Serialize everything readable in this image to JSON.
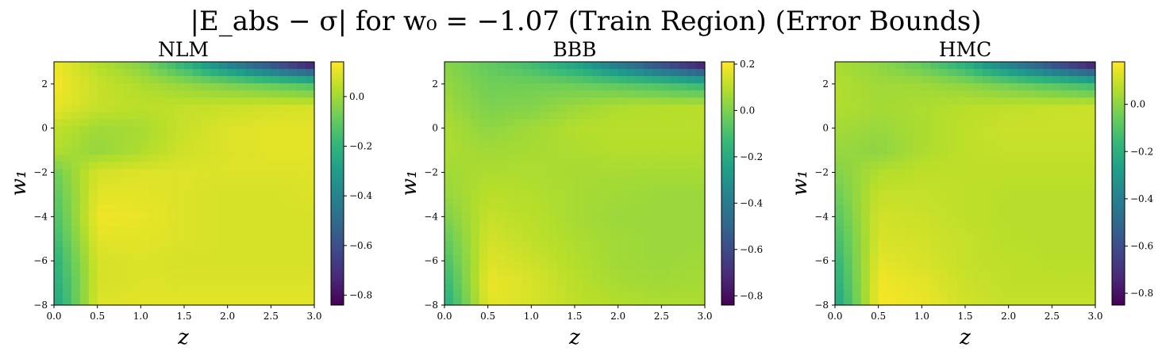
{
  "figure": {
    "title": "|E_abs − σ| for w₀ = −1.07 (Train Region) (Error Bounds)"
  },
  "colormap": [
    "#440154",
    "#482878",
    "#3e4989",
    "#31688e",
    "#26828e",
    "#1f9e89",
    "#35b779",
    "#6ece58",
    "#b5de2b",
    "#fde725"
  ],
  "chart_data": [
    {
      "type": "heatmap",
      "title": "NLM",
      "xlabel": "z",
      "ylabel": "w₁",
      "xlim": [
        0.0,
        3.0
      ],
      "ylim": [
        -8,
        3
      ],
      "xticks": [
        "0.0",
        "0.5",
        "1.0",
        "1.5",
        "2.0",
        "2.5",
        "3.0"
      ],
      "yticks": [
        "2",
        "0",
        "−2",
        "−4",
        "−6",
        "−8"
      ],
      "colorbar": {
        "range": [
          -0.84,
          0.14
        ],
        "ticks": [
          "0.0",
          "−0.2",
          "−0.4",
          "−0.6",
          "−0.8"
        ],
        "tick_values": [
          0.0,
          -0.2,
          -0.4,
          -0.6,
          -0.8
        ]
      },
      "grid": {
        "z": [
          0.0,
          0.5,
          1.0,
          1.5,
          2.0,
          2.5,
          3.0
        ],
        "w1": [
          3,
          2,
          1,
          0,
          -1,
          -2,
          -3,
          -4,
          -5,
          -6,
          -7,
          -8
        ],
        "values": [
          [
            0.12,
            0.03,
            -0.05,
            -0.22,
            -0.45,
            -0.65,
            -0.84
          ],
          [
            0.13,
            0.06,
            0.02,
            -0.02,
            -0.06,
            -0.1,
            -0.15
          ],
          [
            0.11,
            0.06,
            0.04,
            0.05,
            0.06,
            0.07,
            0.08
          ],
          [
            0.05,
            0.0,
            0.01,
            0.06,
            0.09,
            0.1,
            0.1
          ],
          [
            0.03,
            -0.02,
            0.02,
            0.07,
            0.09,
            0.1,
            0.1
          ],
          [
            -0.08,
            0.08,
            0.09,
            0.09,
            0.09,
            0.09,
            0.09
          ],
          [
            -0.12,
            0.1,
            0.1,
            0.09,
            0.08,
            0.08,
            0.09
          ],
          [
            -0.15,
            0.12,
            0.11,
            0.09,
            0.08,
            0.08,
            0.08
          ],
          [
            -0.18,
            0.1,
            0.1,
            0.09,
            0.08,
            0.08,
            0.08
          ],
          [
            -0.22,
            0.08,
            0.09,
            0.08,
            0.08,
            0.08,
            0.08
          ],
          [
            -0.25,
            0.08,
            0.09,
            0.09,
            0.09,
            0.09,
            0.09
          ],
          [
            -0.28,
            0.09,
            0.1,
            0.1,
            0.1,
            0.1,
            0.1
          ]
        ]
      }
    },
    {
      "type": "heatmap",
      "title": "BBB",
      "xlabel": "z",
      "ylabel": "w₁",
      "xlim": [
        0.0,
        3.0
      ],
      "ylim": [
        -8,
        3
      ],
      "xticks": [
        "0.0",
        "0.5",
        "1.0",
        "1.5",
        "2.0",
        "2.5",
        "3.0"
      ],
      "yticks": [
        "2",
        "0",
        "−2",
        "−4",
        "−6",
        "−8"
      ],
      "colorbar": {
        "range": [
          -0.84,
          0.21
        ],
        "ticks": [
          "0.2",
          "0.0",
          "−0.2",
          "−0.4",
          "−0.6",
          "−0.8"
        ],
        "tick_values": [
          0.2,
          0.0,
          -0.2,
          -0.4,
          -0.6,
          -0.8
        ]
      },
      "grid": {
        "z": [
          0.0,
          0.5,
          1.0,
          1.5,
          2.0,
          2.5,
          3.0
        ],
        "w1": [
          3,
          2,
          1,
          0,
          -1,
          -2,
          -3,
          -4,
          -5,
          -6,
          -7,
          -8
        ],
        "values": [
          [
            0.02,
            -0.05,
            -0.12,
            -0.25,
            -0.45,
            -0.65,
            -0.84
          ],
          [
            0.04,
            -0.02,
            -0.02,
            -0.03,
            -0.06,
            -0.1,
            -0.15
          ],
          [
            0.06,
            0.0,
            0.01,
            0.05,
            0.08,
            0.09,
            0.1
          ],
          [
            0.08,
            0.03,
            0.06,
            0.09,
            0.1,
            0.1,
            0.1
          ],
          [
            0.08,
            0.06,
            0.07,
            0.08,
            0.09,
            0.09,
            0.09
          ],
          [
            0.06,
            0.08,
            0.08,
            0.07,
            0.07,
            0.07,
            0.07
          ],
          [
            0.04,
            0.1,
            0.09,
            0.07,
            0.06,
            0.05,
            0.05
          ],
          [
            0.0,
            0.12,
            0.1,
            0.07,
            0.05,
            0.05,
            0.05
          ],
          [
            -0.05,
            0.14,
            0.11,
            0.08,
            0.06,
            0.05,
            0.05
          ],
          [
            -0.1,
            0.16,
            0.13,
            0.09,
            0.06,
            0.05,
            0.06
          ],
          [
            -0.15,
            0.18,
            0.15,
            0.1,
            0.07,
            0.06,
            0.07
          ],
          [
            -0.2,
            0.17,
            0.15,
            0.11,
            0.09,
            0.08,
            0.08
          ]
        ]
      }
    },
    {
      "type": "heatmap",
      "title": "HMC",
      "xlabel": "z",
      "ylabel": "w₁",
      "xlim": [
        0.0,
        3.0
      ],
      "ylim": [
        -8,
        3
      ],
      "xticks": [
        "0.0",
        "0.5",
        "1.0",
        "1.5",
        "2.0",
        "2.5",
        "3.0"
      ],
      "yticks": [
        "2",
        "0",
        "−2",
        "−4",
        "−6",
        "−8"
      ],
      "colorbar": {
        "range": [
          -0.85,
          0.18
        ],
        "ticks": [
          "0.0",
          "−0.2",
          "−0.4",
          "−0.6",
          "−0.8"
        ],
        "tick_values": [
          0.0,
          -0.2,
          -0.4,
          -0.6,
          -0.8
        ]
      },
      "grid": {
        "z": [
          0.0,
          0.5,
          1.0,
          1.5,
          2.0,
          2.5,
          3.0
        ],
        "w1": [
          3,
          2,
          1,
          0,
          -1,
          -2,
          -3,
          -4,
          -5,
          -6,
          -7,
          -8
        ],
        "values": [
          [
            0.05,
            0.0,
            -0.08,
            -0.22,
            -0.45,
            -0.65,
            -0.85
          ],
          [
            0.06,
            0.03,
            0.03,
            0.0,
            -0.05,
            -0.1,
            -0.16
          ],
          [
            0.06,
            0.04,
            0.05,
            0.07,
            0.08,
            0.09,
            0.1
          ],
          [
            0.04,
            0.02,
            0.05,
            0.08,
            0.1,
            0.1,
            0.1
          ],
          [
            0.02,
            0.0,
            0.05,
            0.08,
            0.09,
            0.09,
            0.09
          ],
          [
            -0.02,
            0.06,
            0.08,
            0.08,
            0.08,
            0.08,
            0.08
          ],
          [
            -0.06,
            0.09,
            0.09,
            0.08,
            0.07,
            0.07,
            0.07
          ],
          [
            -0.1,
            0.11,
            0.1,
            0.08,
            0.07,
            0.07,
            0.07
          ],
          [
            -0.14,
            0.12,
            0.11,
            0.09,
            0.07,
            0.07,
            0.07
          ],
          [
            -0.18,
            0.14,
            0.12,
            0.09,
            0.08,
            0.07,
            0.07
          ],
          [
            -0.22,
            0.16,
            0.14,
            0.1,
            0.08,
            0.08,
            0.08
          ],
          [
            -0.26,
            0.17,
            0.15,
            0.11,
            0.09,
            0.09,
            0.09
          ]
        ]
      }
    }
  ]
}
